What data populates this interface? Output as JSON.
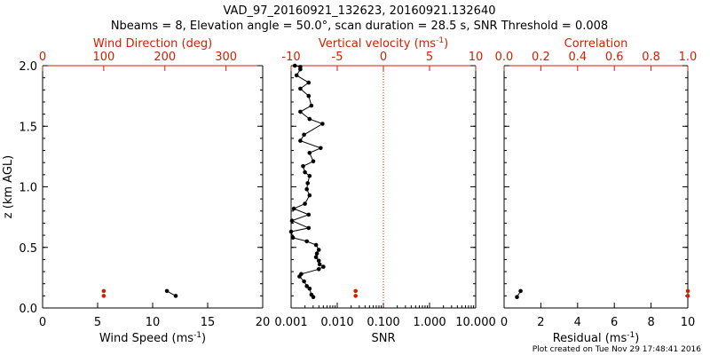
{
  "title_line1": "VAD_97_20160921_132623, 20160921.132640",
  "title_line2": "Nbeams = 8, Elevation angle = 50.0°, scan duration = 28.5 s, SNR Threshold = 0.008",
  "credit": "Plot created on Tue Nov 29 17:48:41 2016",
  "colors": {
    "axis": "#000000",
    "accent": "#cc2200",
    "data": "#000000"
  },
  "chart_data": [
    {
      "type": "scatter",
      "panel": "left",
      "ylabel": "z (km AGL)",
      "ylim": [
        0,
        2
      ],
      "yticks": [
        "0.0",
        "0.5",
        "1.0",
        "1.5",
        "2.0"
      ],
      "bottom_axis": {
        "label": "Wind Speed (ms",
        "label_sup": "-1",
        "label_end": ")",
        "range": [
          0,
          20
        ],
        "ticks": [
          "0",
          "5",
          "10",
          "15",
          "20"
        ]
      },
      "top_axis": {
        "label": "Wind Direction (deg)",
        "range": [
          0,
          360
        ],
        "ticks": [
          "0",
          "100",
          "200",
          "300"
        ]
      },
      "series": [
        {
          "name": "Wind Speed",
          "axis": "bottom",
          "color": "#000000",
          "connected": true,
          "x": [
            11.3,
            12.1
          ],
          "z": [
            0.14,
            0.1
          ]
        },
        {
          "name": "Wind Direction",
          "axis": "top",
          "color": "#cc2200",
          "connected": false,
          "x": [
            100,
            100
          ],
          "z": [
            0.14,
            0.1
          ]
        }
      ]
    },
    {
      "type": "line",
      "panel": "middle",
      "ylim": [
        0,
        2
      ],
      "bottom_axis": {
        "label": "SNR",
        "scale": "log",
        "range": [
          0.001,
          10
        ],
        "ticks": [
          "0.001",
          "0.010",
          "0.100",
          "1.000",
          "10.000"
        ]
      },
      "top_axis": {
        "label": "Vertical velocity (ms",
        "label_sup": "-1",
        "label_end": ")",
        "range": [
          -10,
          10
        ],
        "ticks": [
          "-10",
          "-5",
          "0",
          "5",
          "10"
        ]
      },
      "reference_line": {
        "axis": "top",
        "value": 0
      },
      "series": [
        {
          "name": "Vertical velocity",
          "axis": "top",
          "color": "#000000",
          "connected": true,
          "x": [
            -7.6,
            -7.8,
            -8.0,
            -8.3,
            -8.6,
            -9.1,
            -8.9,
            -7.0,
            -6.5,
            -6.9,
            -7.0,
            -7.3,
            -7.2,
            -7.0,
            -7.3,
            -8.3,
            -9.8,
            -10.0,
            -8.1,
            -9.9,
            -8.1,
            -9.7,
            -8.5,
            -8.0,
            -8.3,
            -8.2,
            -8.0,
            -8.5,
            -8.7,
            -7.6,
            -8.0,
            -6.8,
            -9.0,
            -8.6,
            -6.6,
            -8.0,
            -9.0,
            -7.8,
            -8.1,
            -9.0,
            -8.1,
            -9.4,
            -9.0,
            -9.0,
            -9.6
          ],
          "z": [
            0.09,
            0.11,
            0.16,
            0.18,
            0.22,
            0.26,
            0.28,
            0.32,
            0.34,
            0.36,
            0.39,
            0.42,
            0.45,
            0.48,
            0.52,
            0.55,
            0.58,
            0.63,
            0.66,
            0.72,
            0.77,
            0.82,
            0.86,
            0.93,
            0.98,
            1.03,
            1.09,
            1.12,
            1.17,
            1.21,
            1.28,
            1.32,
            1.38,
            1.43,
            1.52,
            1.56,
            1.62,
            1.67,
            1.75,
            1.81,
            1.86,
            1.92,
            1.97,
            1.99,
            2.0
          ]
        },
        {
          "name": "SNR",
          "axis": "bottom",
          "color": "#cc2200",
          "connected": false,
          "x": [
            0.025,
            0.025
          ],
          "z": [
            0.14,
            0.1
          ]
        }
      ]
    },
    {
      "type": "scatter",
      "panel": "right",
      "ylim": [
        0,
        2
      ],
      "bottom_axis": {
        "label": "Residual (ms",
        "label_sup": "-1",
        "label_end": ")",
        "range": [
          0,
          10
        ],
        "ticks": [
          "0",
          "2",
          "4",
          "6",
          "8",
          "10"
        ]
      },
      "top_axis": {
        "label": "Correlation",
        "range": [
          0,
          1
        ],
        "ticks": [
          "0.0",
          "0.2",
          "0.4",
          "0.6",
          "0.8",
          "1.0"
        ]
      },
      "series": [
        {
          "name": "Residual",
          "axis": "bottom",
          "color": "#000000",
          "connected": true,
          "x": [
            0.9,
            0.7
          ],
          "z": [
            0.14,
            0.09
          ]
        },
        {
          "name": "Correlation",
          "axis": "top",
          "color": "#cc2200",
          "connected": false,
          "x": [
            1.0,
            1.0
          ],
          "z": [
            0.14,
            0.1
          ]
        }
      ]
    }
  ]
}
